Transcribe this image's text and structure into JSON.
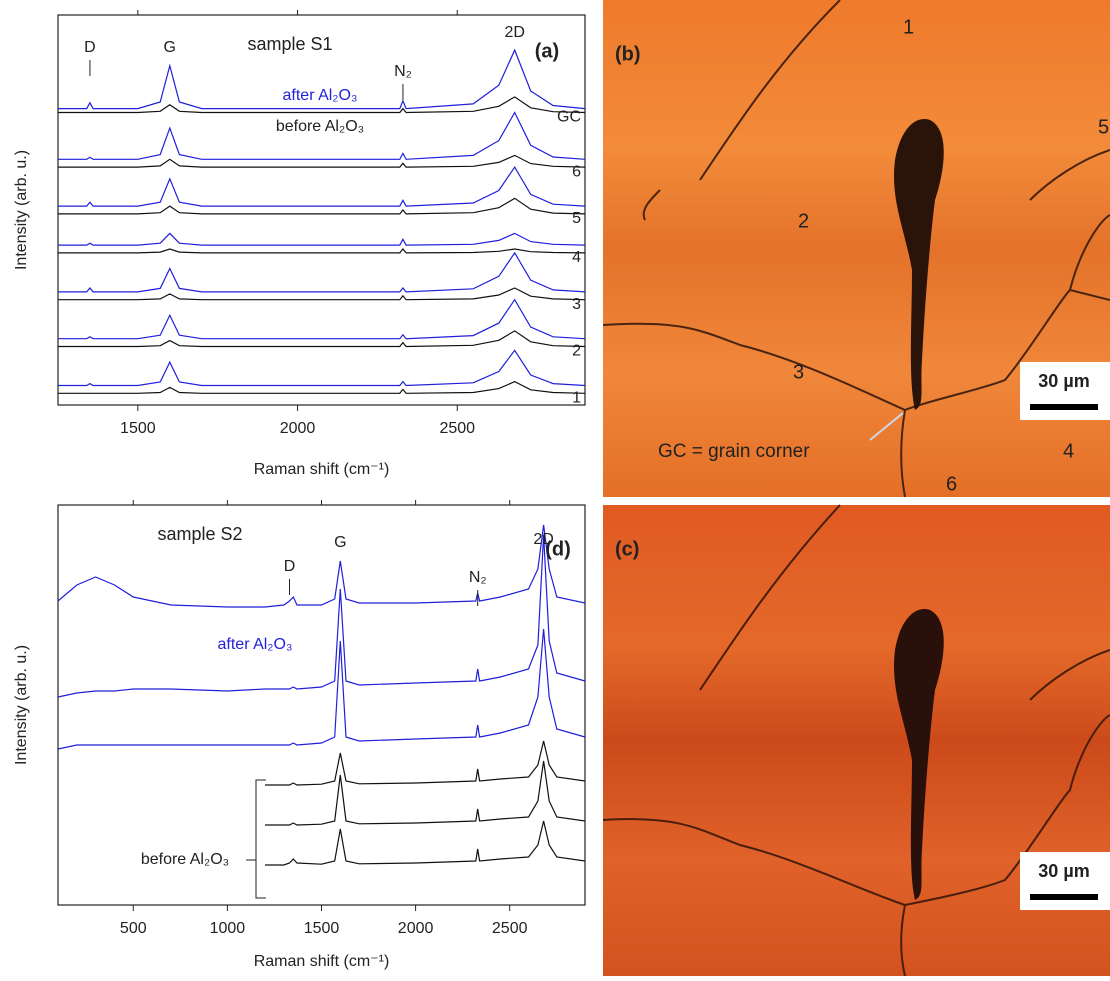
{
  "chart_data": [
    {
      "type": "line",
      "title": "sample S1",
      "panel_label": "(a)",
      "x_label": "Raman shift (cm⁻¹)",
      "y_label": "Intensity (arb. u.)",
      "xlim": [
        1250,
        2900
      ],
      "xticks": [
        1500,
        2000,
        2500
      ],
      "ylim": [
        0,
        100
      ],
      "x": [
        1250,
        1340,
        1350,
        1360,
        1500,
        1570,
        1600,
        1630,
        1700,
        2000,
        2320,
        2330,
        2340,
        2550,
        2630,
        2680,
        2730,
        2800,
        2900
      ],
      "annotations": [
        {
          "text": "D",
          "x": 1350
        },
        {
          "text": "G",
          "x": 1600
        },
        {
          "text": "N₂",
          "x": 2330
        },
        {
          "text": "2D",
          "x": 2680
        },
        {
          "text": "after Al₂O₃"
        },
        {
          "text": "before Al₂O₃"
        }
      ],
      "series": [
        {
          "color": "#1f1fdc",
          "values": [
            76,
            76,
            77.5,
            76,
            76,
            77.7,
            87,
            77.7,
            76,
            76,
            76,
            78,
            76,
            77.2,
            82,
            91,
            80.5,
            76.8,
            76
          ]
        },
        {
          "name": "GC",
          "color": "#111111",
          "values": [
            75,
            75,
            75,
            75,
            75,
            75.3,
            77,
            75.3,
            75,
            75,
            75,
            76,
            75,
            75.3,
            76.6,
            79,
            76.2,
            75.2,
            75
          ]
        },
        {
          "color": "#1f1fdc",
          "values": [
            63,
            63,
            63.5,
            63,
            63,
            64.2,
            71,
            64.2,
            63,
            63,
            63,
            64.5,
            63,
            64,
            67.8,
            75,
            66.6,
            63.6,
            63
          ]
        },
        {
          "name": "6",
          "color": "#111111",
          "values": [
            61,
            61,
            61,
            61,
            61,
            61.3,
            63,
            61.3,
            61,
            61,
            61,
            62,
            61,
            61.2,
            62.2,
            64,
            61.9,
            61.2,
            61
          ]
        },
        {
          "color": "#1f1fdc",
          "values": [
            51,
            51,
            52,
            51,
            51,
            52,
            58,
            52,
            51,
            51,
            51,
            52.5,
            51,
            51.8,
            55,
            61,
            54,
            51.5,
            51
          ]
        },
        {
          "name": "5",
          "color": "#111111",
          "values": [
            49,
            49,
            49,
            49,
            49,
            49.3,
            51,
            49.3,
            49,
            49,
            49,
            50,
            49,
            49.3,
            50.6,
            53,
            50.2,
            49.2,
            49
          ]
        },
        {
          "color": "#1f1fdc",
          "values": [
            41,
            41,
            41.5,
            41,
            41,
            41.5,
            44,
            41.5,
            41,
            41,
            41,
            42.5,
            41,
            41.2,
            42.2,
            44,
            41.9,
            41.2,
            41
          ]
        },
        {
          "name": "4",
          "color": "#111111",
          "values": [
            39,
            39,
            39,
            39,
            39,
            39.2,
            40,
            39.2,
            39,
            39,
            39,
            40,
            39,
            39.1,
            39.4,
            40,
            39.3,
            39.1,
            39
          ]
        },
        {
          "color": "#1f1fdc",
          "values": [
            29,
            29,
            30,
            29,
            29,
            29.9,
            35,
            29.9,
            29,
            29,
            29,
            30,
            29,
            29.8,
            33,
            39,
            32,
            29.5,
            29
          ]
        },
        {
          "name": "3",
          "color": "#111111",
          "values": [
            27,
            27,
            27,
            27,
            27,
            27.2,
            28.5,
            27.2,
            27,
            27,
            27,
            28,
            27,
            27.2,
            28.2,
            30,
            27.9,
            27.2,
            27
          ]
        },
        {
          "color": "#1f1fdc",
          "values": [
            17,
            17,
            17.5,
            17,
            17,
            17.9,
            23,
            17.9,
            17,
            17,
            17,
            18,
            17,
            17.8,
            21,
            27,
            20,
            17.5,
            17
          ]
        },
        {
          "name": "2",
          "color": "#111111",
          "values": [
            15,
            15,
            15,
            15,
            15,
            15.2,
            16.5,
            15.2,
            15,
            15,
            15,
            16,
            15,
            15.3,
            16.6,
            19,
            16.2,
            15.2,
            15
          ]
        },
        {
          "color": "#1f1fdc",
          "values": [
            5,
            5,
            5.5,
            5,
            5,
            5.9,
            11,
            5.9,
            5,
            5,
            5,
            6,
            5,
            5.7,
            8.6,
            14,
            7.7,
            5.5,
            5
          ]
        },
        {
          "name": "1",
          "color": "#111111",
          "values": [
            3,
            3,
            3,
            3,
            3,
            3.2,
            4.5,
            3.2,
            3,
            3,
            3,
            4,
            3,
            3.2,
            4.2,
            6,
            3.9,
            3.2,
            3
          ]
        }
      ]
    },
    {
      "type": "line",
      "title": "sample S2",
      "panel_label": "(d)",
      "x_label": "Raman shift (cm⁻¹)",
      "y_label": "Intensity (arb. u.)",
      "xlim": [
        100,
        2900
      ],
      "xticks": [
        500,
        1000,
        1500,
        2000,
        2500
      ],
      "ylim": [
        0,
        100
      ],
      "x": [
        100,
        200,
        300,
        400,
        500,
        700,
        1000,
        1200,
        1300,
        1330,
        1350,
        1370,
        1500,
        1570,
        1600,
        1630,
        1700,
        2000,
        2320,
        2330,
        2340,
        2450,
        2600,
        2650,
        2680,
        2710,
        2750,
        2900
      ],
      "annotations": [
        {
          "text": "D",
          "x": 1330
        },
        {
          "text": "G",
          "x": 1600
        },
        {
          "text": "N₂",
          "x": 2330
        },
        {
          "text": "2D",
          "x": 2680
        },
        {
          "text": "after Al₂O₃"
        },
        {
          "text": "before Al₂O₃"
        }
      ],
      "series": [
        {
          "color": "#1f1fdc",
          "values": [
            76,
            80,
            82,
            80,
            77,
            75,
            74.5,
            74.5,
            75,
            76,
            77,
            75,
            75,
            76.5,
            86,
            76.5,
            75.5,
            75.5,
            76,
            78,
            76,
            77,
            79,
            84,
            95,
            84,
            77,
            75.5
          ]
        },
        {
          "color": "#1f1fdc",
          "values": [
            52,
            53,
            53.5,
            53.5,
            54,
            54,
            53.5,
            54,
            54,
            54,
            54.5,
            54,
            54.5,
            56,
            79,
            56,
            55,
            55.5,
            56,
            59,
            56,
            57,
            59,
            65,
            92.5,
            66,
            58,
            56
          ]
        },
        {
          "color": "#1f1fdc",
          "values": [
            39,
            40,
            40,
            40,
            40,
            40,
            40,
            40,
            40,
            40,
            40.5,
            40,
            40.5,
            42,
            66,
            42,
            41,
            41.5,
            42,
            45,
            42,
            43,
            45,
            52,
            69,
            52,
            44,
            42
          ]
        },
        {
          "color": "#111111",
          "values": [
            null,
            null,
            null,
            null,
            null,
            null,
            null,
            30,
            30,
            30,
            30.5,
            30,
            30.2,
            31,
            38,
            31,
            30.3,
            30.5,
            31,
            34,
            31,
            31.5,
            32,
            35,
            41,
            35,
            32,
            31
          ]
        },
        {
          "color": "#111111",
          "values": [
            null,
            null,
            null,
            null,
            null,
            null,
            null,
            20,
            20,
            20,
            20.5,
            20,
            20.2,
            21,
            32.5,
            21,
            20.3,
            20.5,
            21,
            24,
            21,
            21.5,
            22,
            26,
            36,
            26,
            22,
            21
          ]
        },
        {
          "color": "#111111",
          "values": [
            null,
            null,
            null,
            null,
            null,
            null,
            null,
            10,
            10,
            10.5,
            11.5,
            10.5,
            10.2,
            11,
            19,
            11,
            10.3,
            10.5,
            11,
            14,
            11,
            11.5,
            12,
            15,
            21,
            15,
            12,
            11
          ]
        }
      ]
    }
  ],
  "micrographs": [
    {
      "label": "(b)",
      "region_labels": [
        "1",
        "2",
        "3",
        "4",
        "5",
        "6"
      ],
      "annotation": "GC = grain corner",
      "scale_bar": "30 µm"
    },
    {
      "label": "(c)",
      "scale_bar": "30 µm"
    }
  ]
}
